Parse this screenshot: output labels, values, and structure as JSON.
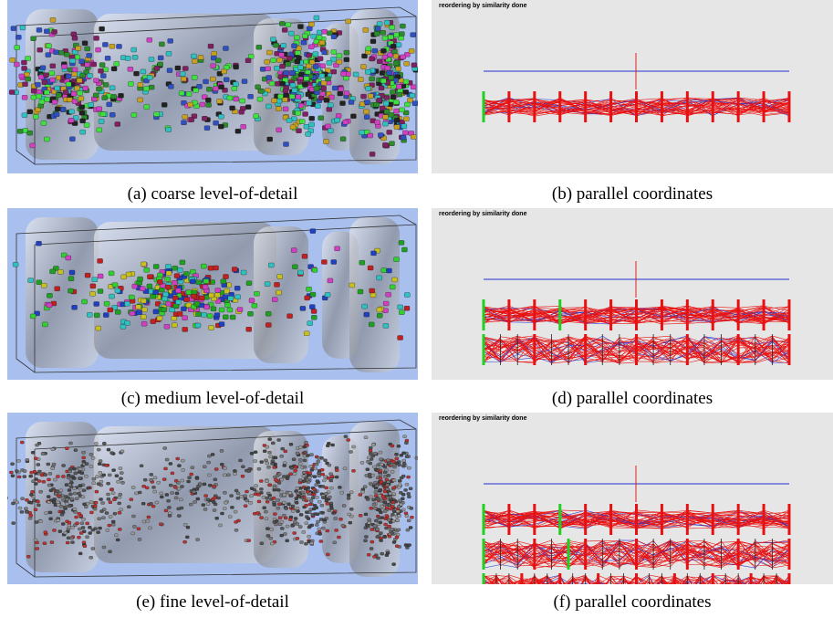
{
  "panels": [
    {
      "caption": "(a) coarse level-of-detail"
    },
    {
      "caption": "(b) parallel coordinates",
      "status": "reordering by similarity done"
    },
    {
      "caption": "(c) medium level-of-detail"
    },
    {
      "caption": "(d) parallel coordinates",
      "status": "reordering by similarity done"
    },
    {
      "caption": "(e) fine level-of-detail"
    },
    {
      "caption": "(f) parallel coordinates",
      "status": "reordering by similarity done"
    }
  ]
}
